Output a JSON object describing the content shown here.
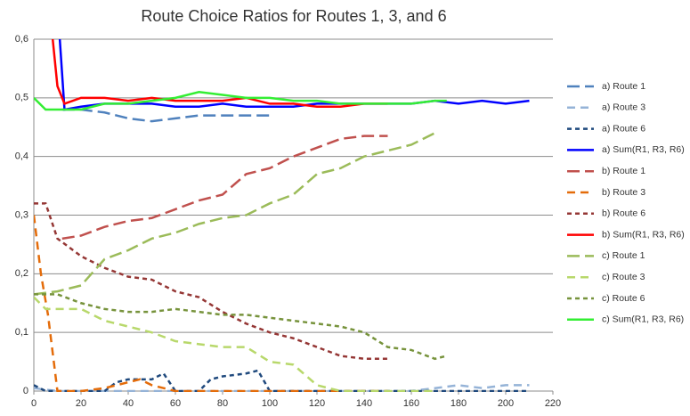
{
  "chart_data": {
    "type": "line",
    "title": "Route Choice Ratios for Routes 1, 3, and 6",
    "xlim": [
      0,
      220
    ],
    "xticks": [
      0,
      20,
      40,
      60,
      80,
      100,
      120,
      140,
      160,
      180,
      200,
      220
    ],
    "ylim": [
      0,
      0.6
    ],
    "yticks": [
      0,
      {
        "value": 0.1,
        "label": "0,1"
      },
      {
        "value": 0.2,
        "label": "0,2"
      },
      {
        "value": 0.3,
        "label": "0,3"
      },
      {
        "value": 0.4,
        "label": "0,4"
      },
      {
        "value": 0.5,
        "label": "0,5"
      },
      {
        "value": 0.6,
        "label": "0,6"
      }
    ],
    "grid": true,
    "legend": "right",
    "series": [
      {
        "name": "a) Route 1",
        "color": "#4f81bd",
        "line_style": "long-dash",
        "x": [
          12,
          20,
          30,
          40,
          50,
          60,
          70,
          80,
          90,
          100
        ],
        "values": [
          0.48,
          0.48,
          0.475,
          0.465,
          0.46,
          0.465,
          0.47,
          0.47,
          0.47,
          0.47
        ]
      },
      {
        "name": "a) Route 3",
        "color": "#95b3d7",
        "line_style": "dash",
        "x": [
          0,
          10,
          20,
          30,
          40,
          50,
          60,
          70,
          80,
          90,
          100,
          110,
          120,
          130,
          140,
          150,
          160,
          170,
          180,
          190,
          200,
          210
        ],
        "values": [
          0.005,
          0,
          0,
          0,
          0,
          0,
          0,
          0,
          0,
          0,
          0,
          0,
          0,
          0,
          0,
          0,
          0,
          0.005,
          0.01,
          0.005,
          0.01,
          0.01
        ]
      },
      {
        "name": "a) Route 6",
        "color": "#1f497d",
        "line_style": "short-dash",
        "x": [
          0,
          5,
          10,
          20,
          30,
          35,
          40,
          50,
          55,
          60,
          70,
          75,
          80,
          90,
          95,
          100,
          110,
          120,
          130,
          140,
          150,
          160,
          170,
          180,
          190,
          200,
          210
        ],
        "values": [
          0.01,
          0,
          0,
          0,
          0,
          0.015,
          0.02,
          0.02,
          0.03,
          0,
          0,
          0.02,
          0.025,
          0.03,
          0.035,
          0,
          0,
          0,
          0,
          0,
          0,
          0,
          0,
          0,
          0,
          0,
          0
        ]
      },
      {
        "name": "a) Sum(R1, R3, R6)",
        "color": "#0000ff",
        "line_style": "solid",
        "x": [
          11,
          13,
          20,
          30,
          40,
          50,
          60,
          70,
          80,
          90,
          100,
          110,
          120,
          130,
          140,
          150,
          160,
          170,
          180,
          190,
          200,
          210
        ],
        "values": [
          0.6,
          0.48,
          0.485,
          0.49,
          0.49,
          0.49,
          0.485,
          0.485,
          0.49,
          0.485,
          0.485,
          0.485,
          0.49,
          0.49,
          0.49,
          0.49,
          0.49,
          0.495,
          0.49,
          0.495,
          0.49,
          0.495
        ]
      },
      {
        "name": "b) Route 1",
        "color": "#c0504d",
        "line_style": "long-dash",
        "x": [
          12,
          20,
          30,
          40,
          50,
          60,
          70,
          80,
          90,
          100,
          110,
          120,
          130,
          140,
          150
        ],
        "values": [
          0.26,
          0.265,
          0.28,
          0.29,
          0.295,
          0.31,
          0.325,
          0.335,
          0.37,
          0.38,
          0.4,
          0.415,
          0.43,
          0.435,
          0.435
        ]
      },
      {
        "name": "b) Route 3",
        "color": "#e46c0a",
        "line_style": "dash",
        "x": [
          0,
          3,
          6,
          10,
          20,
          30,
          40,
          45,
          50,
          60,
          80,
          100,
          120,
          140,
          150
        ],
        "values": [
          0.3,
          0.2,
          0.13,
          0,
          0,
          0.005,
          0.015,
          0.02,
          0.01,
          0,
          0,
          0,
          0,
          0,
          0
        ]
      },
      {
        "name": "b) Route 6",
        "color": "#953735",
        "line_style": "short-dash",
        "x": [
          0,
          5,
          10,
          20,
          30,
          40,
          50,
          60,
          70,
          80,
          90,
          100,
          110,
          120,
          130,
          140,
          150
        ],
        "values": [
          0.32,
          0.32,
          0.26,
          0.23,
          0.21,
          0.195,
          0.19,
          0.17,
          0.16,
          0.135,
          0.115,
          0.1,
          0.09,
          0.075,
          0.06,
          0.055,
          0.055
        ]
      },
      {
        "name": "b) Sum(R1, R3, R6)",
        "color": "#ff0000",
        "line_style": "solid",
        "x": [
          8,
          10,
          13,
          20,
          30,
          40,
          50,
          60,
          70,
          80,
          90,
          100,
          110,
          120,
          130,
          140,
          150
        ],
        "values": [
          0.6,
          0.52,
          0.49,
          0.5,
          0.5,
          0.495,
          0.5,
          0.495,
          0.495,
          0.495,
          0.5,
          0.49,
          0.49,
          0.485,
          0.485,
          0.49,
          0.49
        ]
      },
      {
        "name": "c) Route 1",
        "color": "#9bbb59",
        "line_style": "long-dash",
        "x": [
          0,
          10,
          20,
          30,
          40,
          50,
          60,
          70,
          80,
          90,
          100,
          110,
          120,
          130,
          140,
          150,
          160,
          170
        ],
        "values": [
          0.165,
          0.17,
          0.18,
          0.225,
          0.24,
          0.26,
          0.27,
          0.285,
          0.295,
          0.3,
          0.32,
          0.335,
          0.37,
          0.38,
          0.4,
          0.41,
          0.42,
          0.44
        ]
      },
      {
        "name": "c) Route 3",
        "color": "#b8d86b",
        "line_style": "dash",
        "x": [
          0,
          5,
          20,
          30,
          40,
          50,
          60,
          70,
          80,
          90,
          100,
          110,
          120,
          130,
          140,
          150,
          160,
          170
        ],
        "values": [
          0.16,
          0.14,
          0.14,
          0.12,
          0.11,
          0.1,
          0.085,
          0.08,
          0.075,
          0.075,
          0.05,
          0.045,
          0.01,
          0,
          0,
          0,
          0,
          0
        ]
      },
      {
        "name": "c) Route 6",
        "color": "#77933c",
        "line_style": "short-dash",
        "x": [
          0,
          10,
          20,
          30,
          40,
          50,
          60,
          70,
          80,
          90,
          100,
          110,
          120,
          130,
          140,
          150,
          160,
          170,
          175
        ],
        "values": [
          0.165,
          0.165,
          0.15,
          0.14,
          0.135,
          0.135,
          0.14,
          0.135,
          0.13,
          0.13,
          0.125,
          0.12,
          0.115,
          0.11,
          0.1,
          0.075,
          0.07,
          0.055,
          0.06
        ]
      },
      {
        "name": "c) Sum(R1, R3, R6)",
        "color": "#33ee33",
        "line_style": "solid",
        "x": [
          0,
          5,
          10,
          20,
          30,
          40,
          50,
          60,
          70,
          80,
          90,
          100,
          110,
          120,
          130,
          140,
          150,
          160,
          170,
          175
        ],
        "values": [
          0.5,
          0.48,
          0.48,
          0.48,
          0.49,
          0.49,
          0.495,
          0.5,
          0.51,
          0.505,
          0.5,
          0.5,
          0.495,
          0.495,
          0.49,
          0.49,
          0.49,
          0.49,
          0.495,
          0.495
        ]
      }
    ]
  }
}
